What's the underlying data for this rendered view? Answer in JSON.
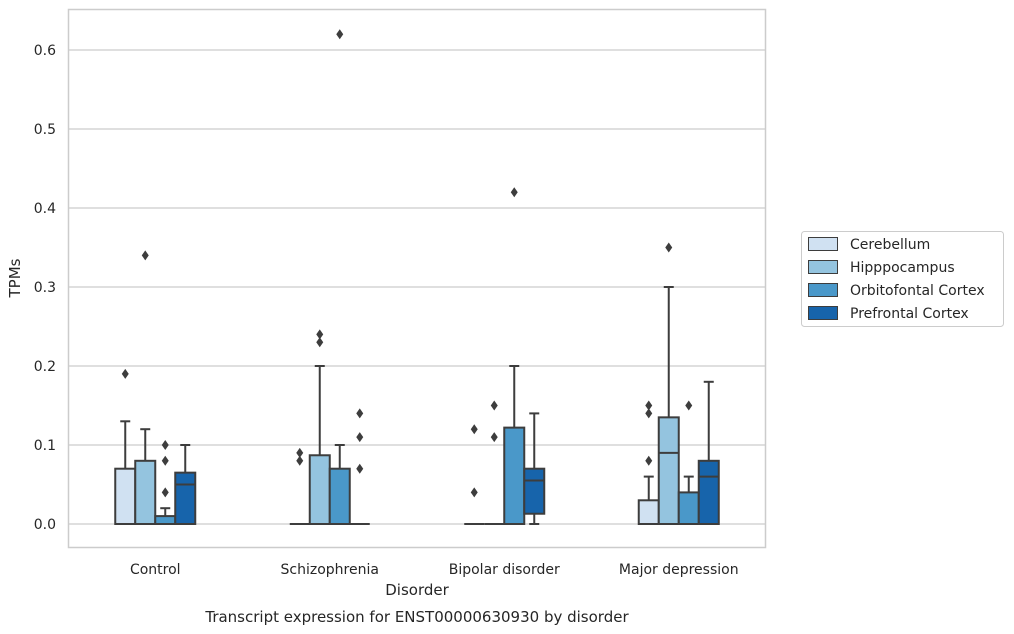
{
  "chart_data": {
    "type": "box",
    "title": "",
    "caption": "Transcript expression for ENST00000630930 by disorder",
    "xlabel": "Disorder",
    "ylabel": "TPMs",
    "ylim": [
      -0.03,
      0.655
    ],
    "yticks": [
      "0.0",
      "0.1",
      "0.2",
      "0.3",
      "0.4",
      "0.5",
      "0.6"
    ],
    "ytick_values": [
      0,
      0.1,
      0.2,
      0.3,
      0.4,
      0.5,
      0.6
    ],
    "grid": "horizontal",
    "legend_position": "right",
    "categories": [
      "Control",
      "Schizophrenia",
      "Bipolar disorder",
      "Major depression"
    ],
    "series": [
      {
        "name": "Cerebellum",
        "color": "#d0e1f2",
        "boxes": [
          {
            "q1": 0,
            "median": 0,
            "q3": 0.07,
            "whisker_low": 0,
            "whisker_high": 0.13,
            "outliers": [
              0.19
            ]
          },
          {
            "q1": 0,
            "median": 0,
            "q3": 0,
            "whisker_low": 0,
            "whisker_high": 0,
            "outliers": [
              0.09,
              0.08
            ]
          },
          {
            "q1": 0,
            "median": 0,
            "q3": 0,
            "whisker_low": 0,
            "whisker_high": 0,
            "outliers": [
              0.12,
              0.04
            ]
          },
          {
            "q1": 0,
            "median": 0,
            "q3": 0.03,
            "whisker_low": 0,
            "whisker_high": 0.06,
            "outliers": [
              0.15,
              0.14,
              0.08
            ]
          }
        ]
      },
      {
        "name": "Hipppocampus",
        "color": "#94c4df",
        "boxes": [
          {
            "q1": 0,
            "median": 0,
            "q3": 0.08,
            "whisker_low": 0,
            "whisker_high": 0.12,
            "outliers": [
              0.34
            ]
          },
          {
            "q1": 0,
            "median": 0,
            "q3": 0.087,
            "whisker_low": 0,
            "whisker_high": 0.2,
            "outliers": [
              0.24,
              0.23
            ]
          },
          {
            "q1": 0,
            "median": 0,
            "q3": 0,
            "whisker_low": 0,
            "whisker_high": 0,
            "outliers": [
              0.15,
              0.11
            ]
          },
          {
            "q1": 0,
            "median": 0.09,
            "q3": 0.135,
            "whisker_low": 0,
            "whisker_high": 0.3,
            "outliers": [
              0.35
            ]
          }
        ]
      },
      {
        "name": "Orbitofontal Cortex",
        "color": "#4a98c9",
        "boxes": [
          {
            "q1": 0,
            "median": 0,
            "q3": 0.01,
            "whisker_low": 0,
            "whisker_high": 0.02,
            "outliers": [
              0.1,
              0.08,
              0.04
            ]
          },
          {
            "q1": 0,
            "median": 0,
            "q3": 0.07,
            "whisker_low": 0,
            "whisker_high": 0.1,
            "outliers": [
              0.62
            ]
          },
          {
            "q1": 0,
            "median": 0,
            "q3": 0.122,
            "whisker_low": 0,
            "whisker_high": 0.2,
            "outliers": [
              0.42
            ]
          },
          {
            "q1": 0,
            "median": 0,
            "q3": 0.04,
            "whisker_low": 0,
            "whisker_high": 0.06,
            "outliers": [
              0.15
            ]
          }
        ]
      },
      {
        "name": "Prefrontal Cortex",
        "color": "#1764ab",
        "boxes": [
          {
            "q1": 0,
            "median": 0.05,
            "q3": 0.065,
            "whisker_low": 0,
            "whisker_high": 0.1,
            "outliers": []
          },
          {
            "q1": 0,
            "median": 0,
            "q3": 0,
            "whisker_low": 0,
            "whisker_high": 0,
            "outliers": [
              0.14,
              0.11,
              0.07
            ]
          },
          {
            "q1": 0.013,
            "median": 0.055,
            "q3": 0.07,
            "whisker_low": 0,
            "whisker_high": 0.14,
            "outliers": []
          },
          {
            "q1": 0,
            "median": 0.06,
            "q3": 0.08,
            "whisker_low": 0,
            "whisker_high": 0.18,
            "outliers": []
          }
        ]
      }
    ]
  }
}
